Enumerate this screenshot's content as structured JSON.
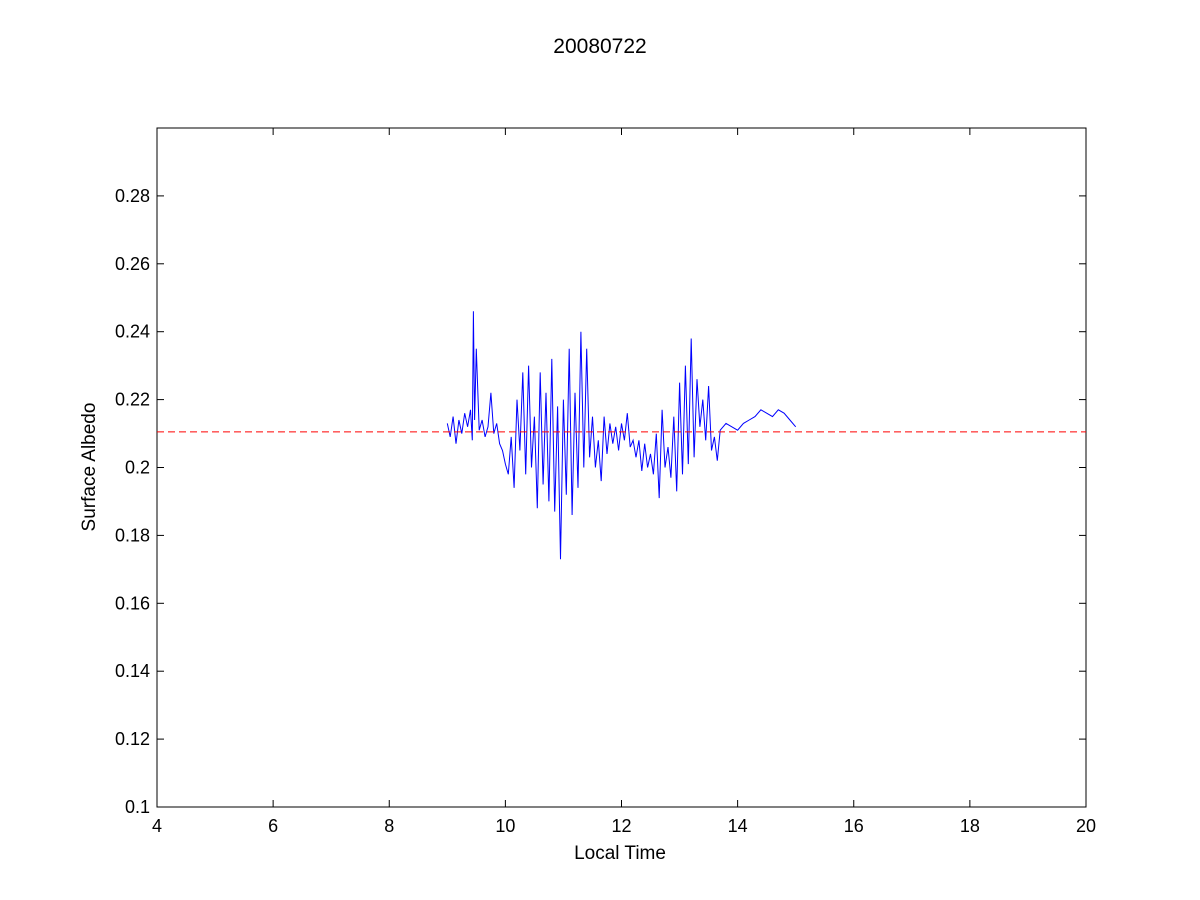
{
  "chart_data": {
    "type": "line",
    "title": "20080722",
    "xlabel": "Local Time",
    "ylabel": "Surface Albedo",
    "xlim": [
      4,
      20
    ],
    "ylim": [
      0.1,
      0.3
    ],
    "xticks": [
      4,
      6,
      8,
      10,
      12,
      14,
      16,
      18,
      20
    ],
    "xtick_labels": [
      "4",
      "6",
      "8",
      "10",
      "12",
      "14",
      "16",
      "18",
      "20"
    ],
    "yticks": [
      0.1,
      0.12,
      0.14,
      0.16,
      0.18,
      0.2,
      0.22,
      0.24,
      0.26,
      0.28
    ],
    "ytick_labels": [
      "0.1",
      "0.12",
      "0.14",
      "0.16",
      "0.18",
      "0.2",
      "0.22",
      "0.24",
      "0.26",
      "0.28"
    ],
    "grid": false,
    "legend": "none",
    "series": [
      {
        "color": "#0000ff",
        "style": "solid",
        "x": [
          9.0,
          9.05,
          9.1,
          9.15,
          9.2,
          9.25,
          9.3,
          9.35,
          9.4,
          9.43,
          9.45,
          9.47,
          9.5,
          9.55,
          9.6,
          9.65,
          9.7,
          9.75,
          9.8,
          9.85,
          9.9,
          9.95,
          10.0,
          10.05,
          10.1,
          10.15,
          10.2,
          10.25,
          10.3,
          10.35,
          10.4,
          10.45,
          10.5,
          10.55,
          10.6,
          10.65,
          10.7,
          10.75,
          10.8,
          10.85,
          10.9,
          10.95,
          11.0,
          11.05,
          11.1,
          11.15,
          11.2,
          11.25,
          11.3,
          11.35,
          11.4,
          11.45,
          11.5,
          11.55,
          11.6,
          11.65,
          11.7,
          11.75,
          11.8,
          11.85,
          11.9,
          11.95,
          12.0,
          12.05,
          12.1,
          12.15,
          12.2,
          12.25,
          12.3,
          12.35,
          12.4,
          12.45,
          12.5,
          12.55,
          12.6,
          12.65,
          12.7,
          12.75,
          12.8,
          12.85,
          12.9,
          12.95,
          13.0,
          13.05,
          13.1,
          13.15,
          13.2,
          13.25,
          13.3,
          13.35,
          13.4,
          13.45,
          13.5,
          13.55,
          13.6,
          13.65,
          13.7,
          13.8,
          13.9,
          14.0,
          14.1,
          14.2,
          14.3,
          14.4,
          14.5,
          14.6,
          14.7,
          14.8,
          14.9,
          15.0
        ],
        "y": [
          0.213,
          0.209,
          0.215,
          0.207,
          0.214,
          0.21,
          0.216,
          0.212,
          0.217,
          0.208,
          0.246,
          0.214,
          0.235,
          0.211,
          0.214,
          0.209,
          0.212,
          0.222,
          0.21,
          0.213,
          0.207,
          0.205,
          0.201,
          0.198,
          0.209,
          0.194,
          0.22,
          0.205,
          0.228,
          0.198,
          0.23,
          0.2,
          0.215,
          0.188,
          0.228,
          0.195,
          0.222,
          0.19,
          0.232,
          0.187,
          0.218,
          0.173,
          0.22,
          0.192,
          0.235,
          0.186,
          0.222,
          0.194,
          0.24,
          0.2,
          0.235,
          0.203,
          0.215,
          0.2,
          0.208,
          0.196,
          0.215,
          0.204,
          0.213,
          0.207,
          0.212,
          0.205,
          0.213,
          0.208,
          0.216,
          0.206,
          0.208,
          0.203,
          0.208,
          0.199,
          0.207,
          0.2,
          0.204,
          0.198,
          0.21,
          0.191,
          0.217,
          0.2,
          0.206,
          0.197,
          0.215,
          0.193,
          0.225,
          0.198,
          0.23,
          0.201,
          0.238,
          0.203,
          0.226,
          0.212,
          0.22,
          0.208,
          0.224,
          0.205,
          0.209,
          0.202,
          0.211,
          0.213,
          0.212,
          0.211,
          0.213,
          0.214,
          0.215,
          0.217,
          0.216,
          0.215,
          0.217,
          0.216,
          0.214,
          0.212
        ]
      },
      {
        "color": "#ff0000",
        "style": "dashed",
        "x": [
          4,
          20
        ],
        "y": [
          0.2105,
          0.2105
        ]
      }
    ]
  }
}
